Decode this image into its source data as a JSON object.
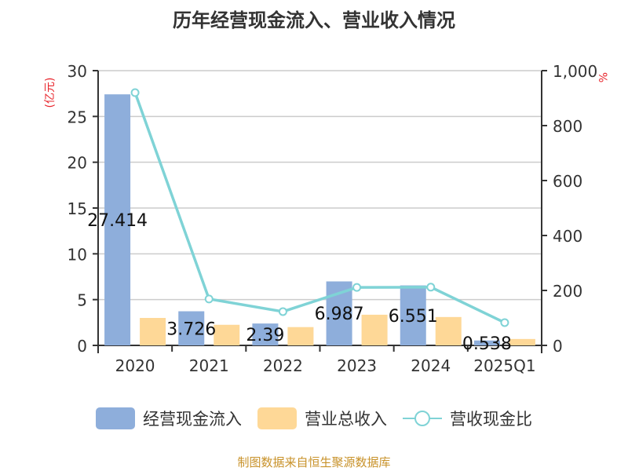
{
  "title": "历年经营现金流入、营业收入情况",
  "left_axis_unit": "(亿元)",
  "right_axis_unit": "%",
  "source": "制图数据来自恒生聚源数据库",
  "colors": {
    "cash_inflow": "#8eaedb",
    "revenue": "#fed897",
    "ratio": "#7fd3d6",
    "unit": "#e8252c",
    "source": "#c8922a",
    "axis": "#333333",
    "grid": "#cccccc"
  },
  "legend": [
    {
      "label": "经营现金流入",
      "type": "bar"
    },
    {
      "label": "营业总收入",
      "type": "bar"
    },
    {
      "label": "营收现金比",
      "type": "line"
    }
  ],
  "chart_data": {
    "type": "bar+line",
    "title": "历年经营现金流入、营业收入情况",
    "categories": [
      "2020",
      "2021",
      "2022",
      "2023",
      "2024",
      "2025Q1"
    ],
    "series": [
      {
        "name": "经营现金流入",
        "type": "bar",
        "axis": "left",
        "values": [
          27.414,
          3.726,
          2.39,
          6.987,
          6.551,
          0.538
        ],
        "labels": [
          "27.414",
          "3.726",
          "2.39",
          "6.987",
          "6.551",
          "0.538"
        ]
      },
      {
        "name": "营业总收入",
        "type": "bar",
        "axis": "left",
        "values": [
          3.0,
          2.25,
          2.0,
          3.35,
          3.1,
          0.7
        ]
      },
      {
        "name": "营收现金比",
        "type": "line",
        "axis": "right",
        "values": [
          920,
          169,
          123,
          211,
          212,
          83
        ]
      }
    ],
    "ylabel_left": "(亿元)",
    "ylabel_right": "%",
    "ylim_left": [
      0,
      30
    ],
    "yticks_left": [
      "0",
      "5",
      "10",
      "15",
      "20",
      "25",
      "30"
    ],
    "ylim_right": [
      0,
      1000
    ],
    "yticks_right": [
      "0",
      "200",
      "400",
      "600",
      "800",
      "1,000"
    ],
    "grid": true,
    "legend_position": "bottom"
  }
}
